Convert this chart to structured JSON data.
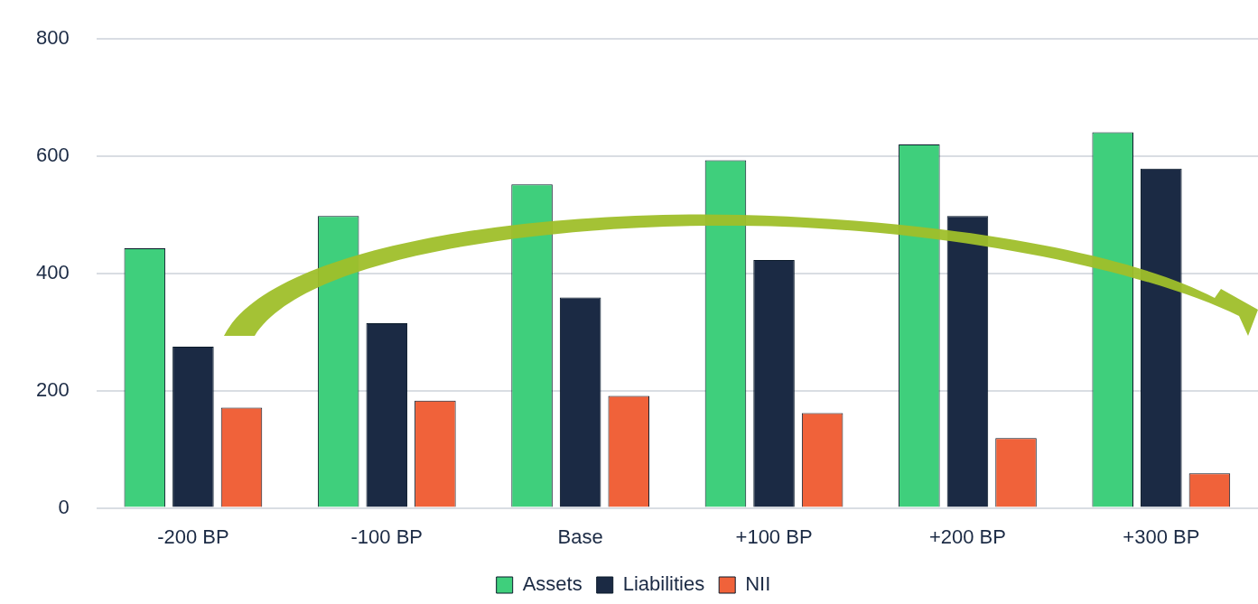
{
  "chart_data": {
    "type": "bar",
    "categories": [
      "-200 BP",
      "-100 BP",
      "Base",
      "+100 BP",
      "+200 BP",
      "+300 BP"
    ],
    "series": [
      {
        "name": "Assets",
        "color": "#3fcf7c",
        "values": [
          443,
          498,
          552,
          593,
          620,
          641
        ]
      },
      {
        "name": "Liabilities",
        "color": "#1b2a44",
        "values": [
          275,
          315,
          359,
          423,
          498,
          579
        ]
      },
      {
        "name": "NII",
        "color": "#f0623a",
        "values": [
          171,
          183,
          191,
          162,
          119,
          59
        ]
      }
    ],
    "ylim": [
      0,
      800
    ],
    "yticks": [
      0,
      200,
      400,
      600,
      800
    ],
    "grid": "y",
    "legend": "bottom"
  }
}
